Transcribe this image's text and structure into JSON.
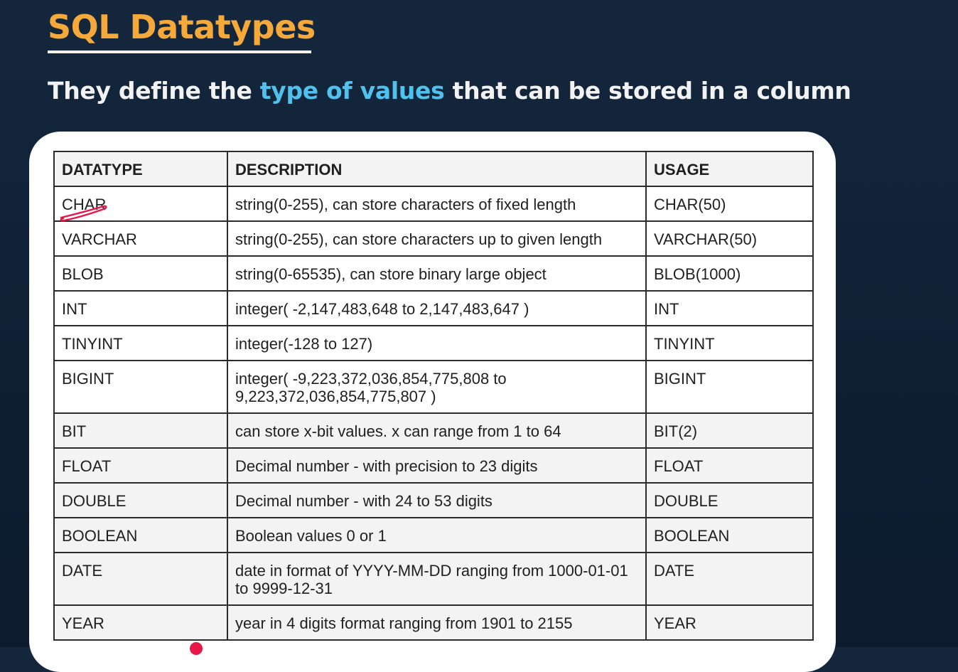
{
  "header": {
    "title": "SQL Datatypes",
    "subtitle_pre": "They define the ",
    "subtitle_accent": "type of values",
    "subtitle_post": " that can be stored in a column"
  },
  "table": {
    "columns": [
      "DATATYPE",
      "DESCRIPTION",
      "USAGE"
    ],
    "rows": [
      {
        "datatype": "CHAR",
        "description": "string(0-255), can store characters of fixed length",
        "usage": "CHAR(50)"
      },
      {
        "datatype": "VARCHAR",
        "description": "string(0-255), can store characters up to given length",
        "usage": "VARCHAR(50)"
      },
      {
        "datatype": "BLOB",
        "description": "string(0-65535), can store binary large object",
        "usage": "BLOB(1000)"
      },
      {
        "datatype": "INT",
        "description": "integer( -2,147,483,648 to 2,147,483,647 )",
        "usage": "INT"
      },
      {
        "datatype": "TINYINT",
        "description": "integer(-128 to 127)",
        "usage": "TINYINT"
      },
      {
        "datatype": "BIGINT",
        "description": "integer( -9,223,372,036,854,775,808 to 9,223,372,036,854,775,807 )",
        "usage": "BIGINT"
      },
      {
        "datatype": "BIT",
        "description": "can store x-bit values. x can range from 1 to 64",
        "usage": "BIT(2)"
      },
      {
        "datatype": "FLOAT",
        "description": "Decimal number - with precision to 23 digits",
        "usage": "FLOAT"
      },
      {
        "datatype": "DOUBLE",
        "description": "Decimal number - with 24 to 53 digits",
        "usage": "DOUBLE"
      },
      {
        "datatype": "BOOLEAN",
        "description": "Boolean values 0 or 1",
        "usage": "BOOLEAN"
      },
      {
        "datatype": "DATE",
        "description": "date in format of YYYY-MM-DD ranging from 1000-01-01 to 9999-12-31",
        "usage": "DATE"
      },
      {
        "datatype": "YEAR",
        "description": "year in 4 digits format ranging from 1901 to 2155",
        "usage": "YEAR"
      }
    ]
  },
  "colors": {
    "background": "#12243a",
    "title": "#f4a93a",
    "accent": "#4fc1ec",
    "annotation": "#e8174a"
  },
  "annotations": {
    "scribble_icon": "pen-underline-icon",
    "pointer_icon": "laser-pointer-icon"
  }
}
